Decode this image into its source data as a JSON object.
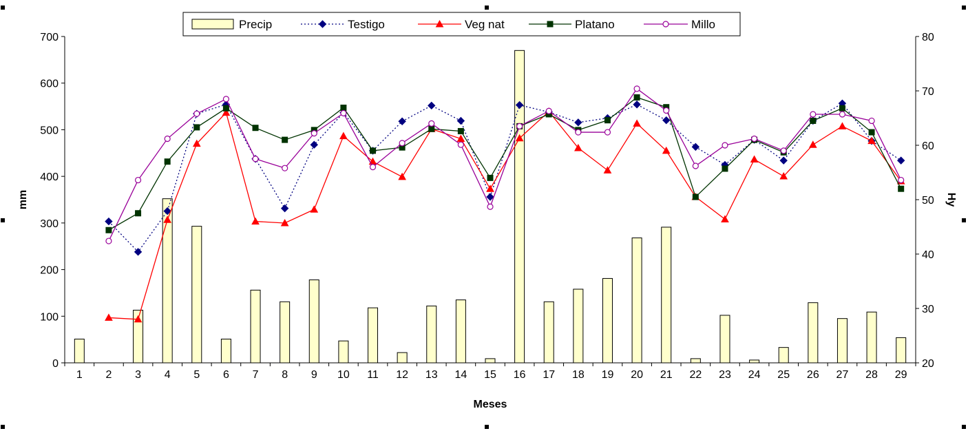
{
  "chart_data": {
    "type": "bar",
    "categories": [
      "1",
      "2",
      "3",
      "4",
      "5",
      "6",
      "7",
      "8",
      "9",
      "10",
      "11",
      "12",
      "13",
      "14",
      "15",
      "16",
      "17",
      "18",
      "19",
      "20",
      "21",
      "22",
      "23",
      "24",
      "25",
      "26",
      "27",
      "28",
      "29"
    ],
    "xlabel": "Meses",
    "ylabel": "mm",
    "y2label": "Hy",
    "ylim": [
      0,
      700
    ],
    "yticks": [
      "0",
      "100",
      "200",
      "300",
      "400",
      "500",
      "600",
      "700"
    ],
    "y2lim": [
      20,
      80
    ],
    "y2ticks": [
      "20",
      "30",
      "40",
      "50",
      "60",
      "70",
      "80"
    ],
    "grid": false,
    "legend_position": "top",
    "bar_series": {
      "name": "Precip",
      "color": "#ffffcc",
      "edge_color": "#000000",
      "values": [
        51,
        0,
        113,
        352,
        293,
        51,
        156,
        131,
        178,
        47,
        118,
        22,
        122,
        135,
        9,
        670,
        131,
        158,
        181,
        268,
        291,
        9,
        102,
        6,
        33,
        129,
        95,
        109,
        54
      ]
    },
    "line_series": [
      {
        "name": "Testigo",
        "color": "#000080",
        "style": "dotted",
        "marker": "diamond",
        "values": [
          null,
          46.0,
          40.4,
          47.9,
          65.8,
          67.5,
          57.5,
          48.4,
          60.1,
          66.0,
          59.0,
          64.4,
          67.3,
          64.5,
          50.5,
          67.4,
          66.1,
          64.2,
          65.0,
          67.5,
          64.6,
          59.7,
          56.4,
          61.0,
          57.2,
          64.5,
          67.7,
          60.8,
          57.2
        ]
      },
      {
        "name": "Veg nat",
        "color": "#ff0000",
        "style": "solid",
        "marker": "triangle",
        "values": [
          null,
          28.3,
          28.0,
          46.3,
          60.3,
          66.0,
          46.0,
          45.7,
          48.2,
          61.7,
          57.0,
          54.2,
          63.0,
          61.2,
          52.0,
          61.3,
          66.2,
          59.5,
          55.4,
          64.0,
          59.0,
          50.5,
          46.4,
          57.4,
          54.3,
          60.1,
          63.5,
          60.8,
          53.4
        ]
      },
      {
        "name": "Platano",
        "color": "#003300",
        "style": "solid",
        "marker": "square",
        "values": [
          null,
          44.4,
          47.5,
          57.0,
          63.3,
          66.8,
          63.2,
          61.0,
          62.8,
          66.9,
          59.0,
          59.6,
          63.0,
          62.6,
          54.0,
          63.5,
          65.7,
          62.8,
          64.6,
          68.8,
          67.0,
          50.5,
          55.7,
          61.0,
          58.7,
          64.5,
          66.8,
          62.4,
          52.0
        ]
      },
      {
        "name": "Millo",
        "color": "#990099",
        "style": "solid",
        "marker": "circle",
        "values": [
          null,
          42.4,
          53.6,
          61.2,
          65.8,
          68.5,
          57.5,
          55.8,
          62.2,
          65.9,
          56.0,
          60.4,
          64.0,
          60.1,
          48.7,
          63.5,
          66.3,
          62.4,
          62.4,
          70.4,
          66.4,
          56.2,
          60.0,
          61.2,
          59.0,
          65.7,
          65.7,
          64.5,
          53.6
        ]
      }
    ]
  }
}
